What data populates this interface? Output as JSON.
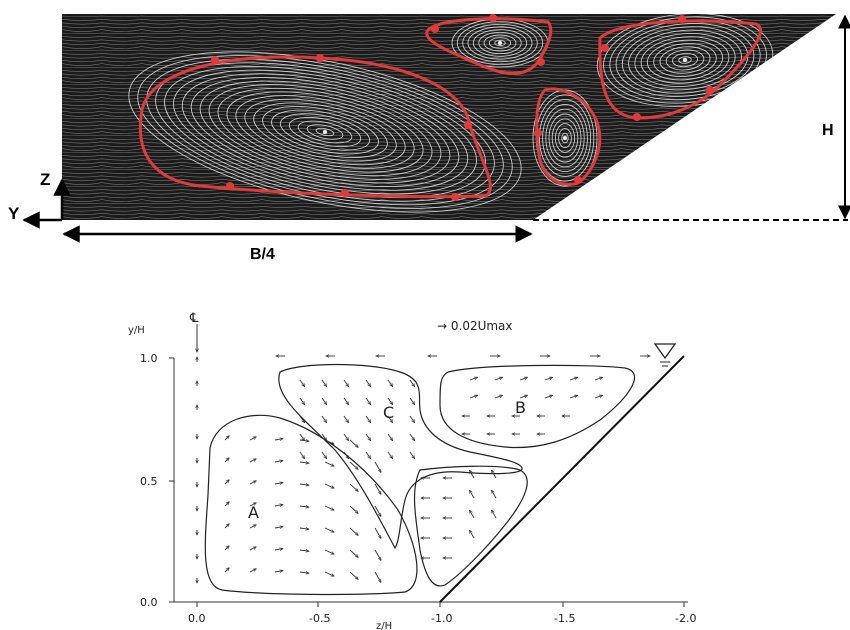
{
  "top_panel": {
    "labels": {
      "axis_z": "Z",
      "axis_y": "Y",
      "width_label": "B/4",
      "height_label": "H"
    },
    "colors": {
      "background": "#1b1b1b",
      "streamline": "#e9e9e9",
      "cell_outline": "#e03a3a"
    }
  },
  "bottom_panel": {
    "centerline_label": "℄",
    "reference_vector_label": "→ 0.02Umax",
    "y_axis_label": "y/H",
    "x_axis_label": "z/H",
    "x_ticks": [
      "0.0",
      "-0.5",
      "-1.0",
      "-1.5",
      "-2.0"
    ],
    "y_ticks": [
      "0.0",
      "0.5",
      "1.0"
    ],
    "regions": [
      {
        "label": "A"
      },
      {
        "label": "B"
      },
      {
        "label": "C"
      }
    ],
    "free_surface_symbol": "free-surface-triangle"
  }
}
